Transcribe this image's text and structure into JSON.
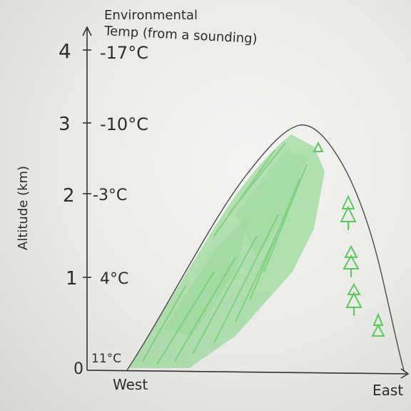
{
  "diagram": {
    "y_axis_title": "Altitude (km)",
    "env_label_line1": "Environmental",
    "env_label_line2": "Temp (from a sounding)",
    "levels": [
      {
        "altitude": "0",
        "temp": "11°C"
      },
      {
        "altitude": "1",
        "temp": "4°C"
      },
      {
        "altitude": "2",
        "temp": "-3°C"
      },
      {
        "altitude": "3",
        "temp": "-10°C"
      },
      {
        "altitude": "4",
        "temp": "-17°C"
      }
    ],
    "west_label": "West",
    "east_label": "East",
    "mountain_colors": {
      "windward_shading": "#5cc95c",
      "trees": "#5cc95c",
      "outline": "#4a4a4a"
    }
  }
}
